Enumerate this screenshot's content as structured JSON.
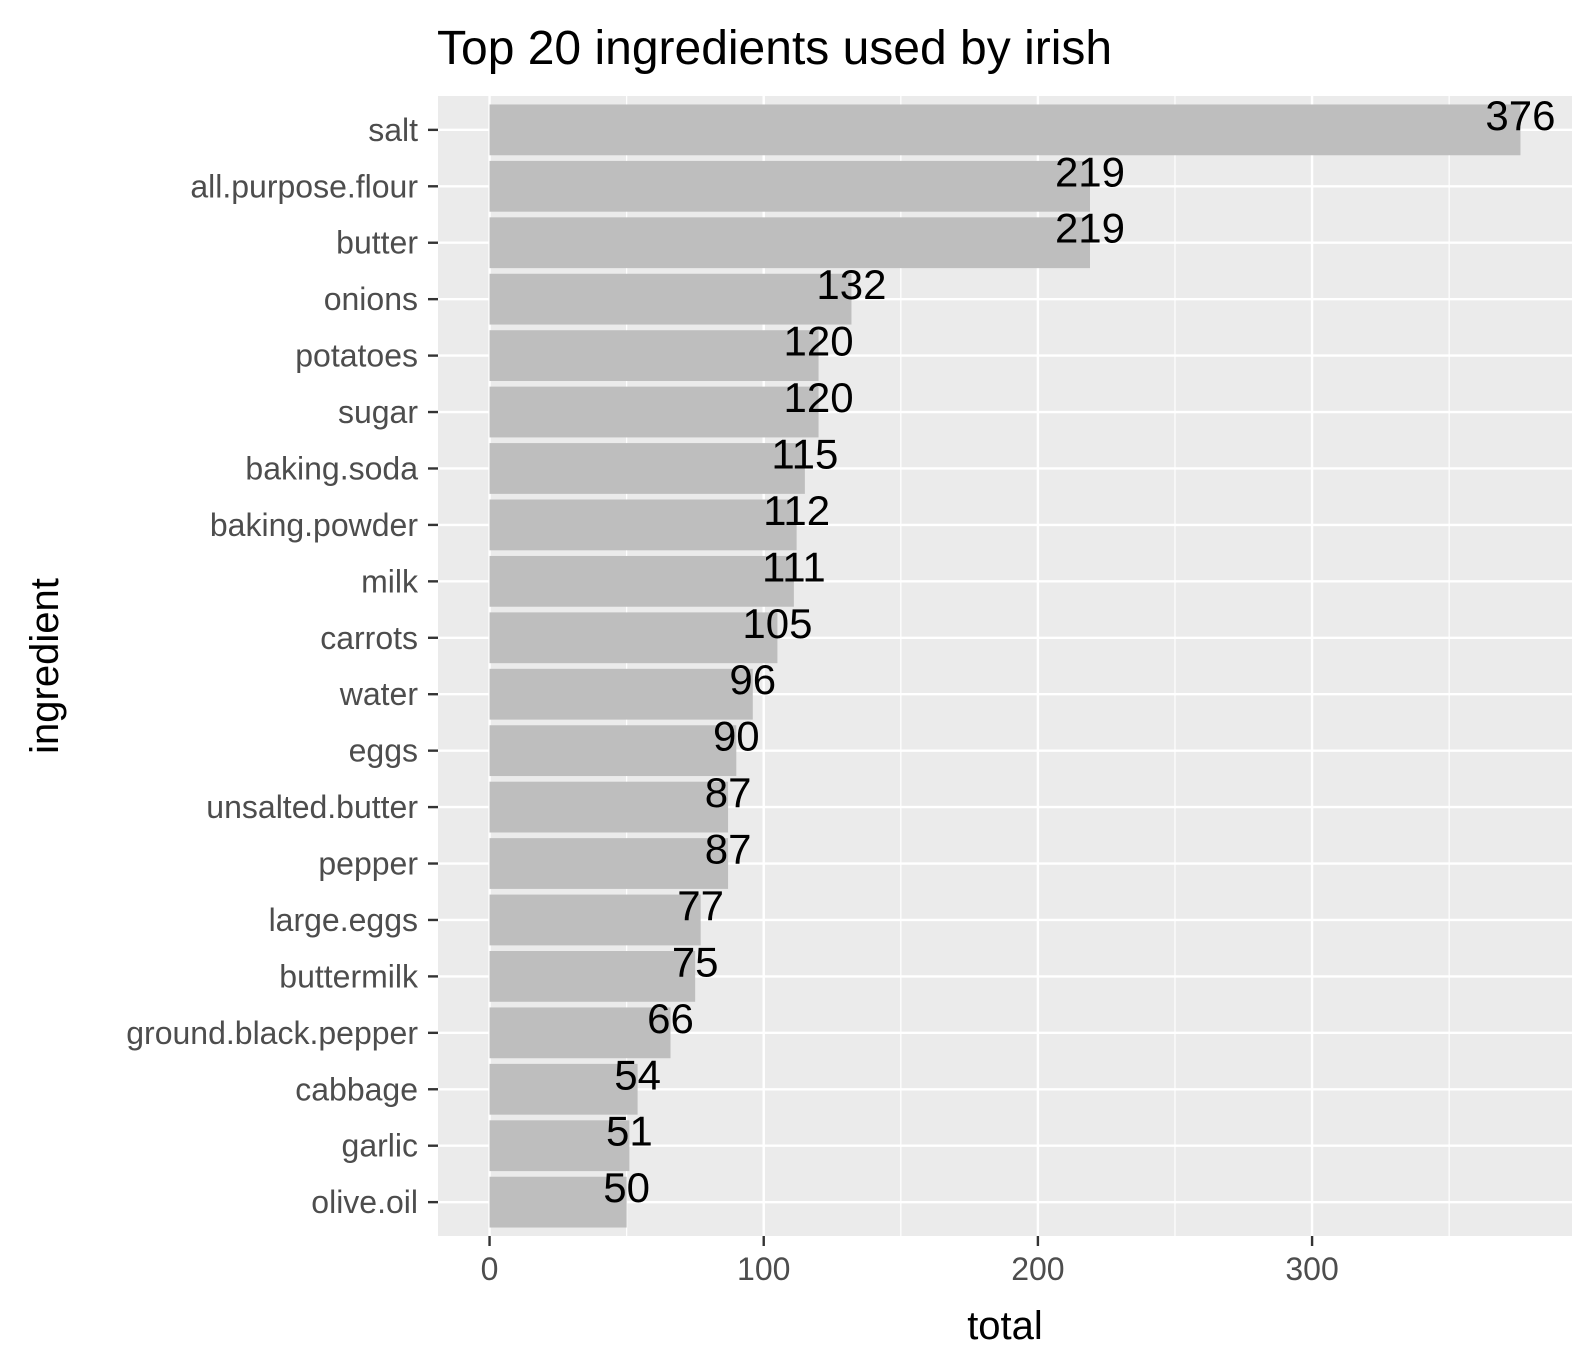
{
  "chart_data": {
    "type": "bar",
    "orientation": "horizontal",
    "title": "Top 20 ingredients used by irish",
    "xlabel": "total",
    "ylabel": "ingredient",
    "categories": [
      "salt",
      "all.purpose.flour",
      "butter",
      "onions",
      "potatoes",
      "sugar",
      "baking.soda",
      "baking.powder",
      "milk",
      "carrots",
      "water",
      "eggs",
      "unsalted.butter",
      "pepper",
      "large.eggs",
      "buttermilk",
      "ground.black.pepper",
      "cabbage",
      "garlic",
      "olive.oil"
    ],
    "values": [
      376,
      219,
      219,
      132,
      120,
      120,
      115,
      112,
      111,
      105,
      96,
      90,
      87,
      87,
      77,
      75,
      66,
      54,
      51,
      50
    ],
    "data_labels": [
      "376",
      "219",
      "219",
      "132",
      "120",
      "120",
      "115",
      "112",
      "111",
      "105",
      "96",
      "90",
      "87",
      "87",
      "77",
      "75",
      "66",
      "54",
      "51",
      "50"
    ],
    "xticks": [
      0,
      100,
      200,
      300
    ],
    "xtick_labels": [
      "0",
      "100",
      "200",
      "300"
    ],
    "xlim": [
      -18.8,
      394.8
    ],
    "grid": true,
    "legend": "none",
    "colors": {
      "bar": "#bebebe",
      "panel": "#ebebeb",
      "grid": "#ffffff",
      "tick": "#333333",
      "tick_label": "#4d4d4d",
      "text": "#000000"
    }
  }
}
